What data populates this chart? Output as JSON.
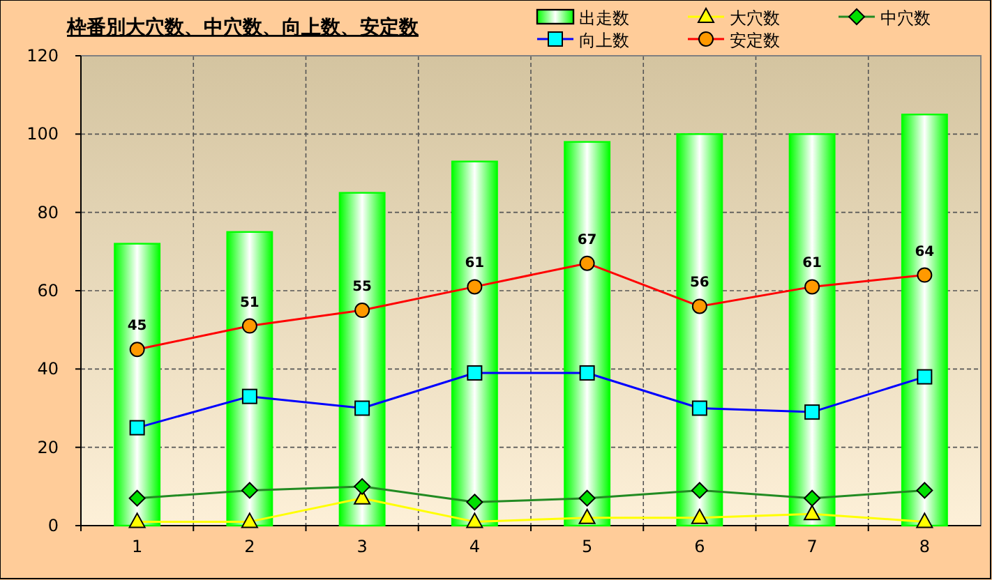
{
  "chart_data": {
    "type": "bar",
    "title": "枠番別大穴数、中穴数、向上数、安定数",
    "categories": [
      "1",
      "2",
      "3",
      "4",
      "5",
      "6",
      "7",
      "8"
    ],
    "series": [
      {
        "name": "出走数",
        "color": "#00ff00",
        "values": [
          72,
          75,
          85,
          93,
          98,
          100,
          100,
          105
        ]
      },
      {
        "name": "大穴数",
        "type": "line",
        "marker": "triangle",
        "color": "#ffff00",
        "colors": [
          "#ffff00",
          "#ffff00",
          "#ffff00",
          "#ffff00",
          "#ffff00",
          "#ffff00",
          "#ffff00",
          "#ffff00"
        ],
        "values": [
          1,
          1,
          7,
          1,
          2,
          2,
          3,
          1
        ]
      },
      {
        "name": "中穴数",
        "type": "line",
        "marker": "diamond",
        "color": "#228b22",
        "colors": [
          "#00e000",
          "#00e000",
          "#00e000",
          "#00e000",
          "#00e000",
          "#00e000",
          "#00e000",
          "#00e000"
        ],
        "values": [
          7,
          9,
          10,
          6,
          7,
          9,
          7,
          9
        ]
      },
      {
        "name": "向上数",
        "type": "line",
        "marker": "square",
        "color": "#0000ff",
        "colors": [
          "#00ffff",
          "#00ffff",
          "#00ffff",
          "#00ffff",
          "#00ffff",
          "#00ffff",
          "#00ffff",
          "#00ffff"
        ],
        "values": [
          25,
          33,
          30,
          39,
          39,
          30,
          29,
          38
        ]
      },
      {
        "name": "安定数",
        "type": "line",
        "marker": "circle",
        "color": "#ff0000",
        "colors": [
          "#ff9900",
          "#ff9900",
          "#ff9900",
          "#ff9900",
          "#ff9900",
          "#ff9900",
          "#ff9900",
          "#ff9900"
        ],
        "values": [
          45,
          51,
          55,
          61,
          67,
          56,
          61,
          64
        ],
        "value_labels": [
          "45",
          "51",
          "55",
          "61",
          "67",
          "56",
          "61",
          "64"
        ]
      }
    ],
    "ylim": [
      0,
      120
    ],
    "yticks": [
      0,
      20,
      40,
      60,
      80,
      100,
      120
    ],
    "grid": true,
    "legend": "top right"
  }
}
